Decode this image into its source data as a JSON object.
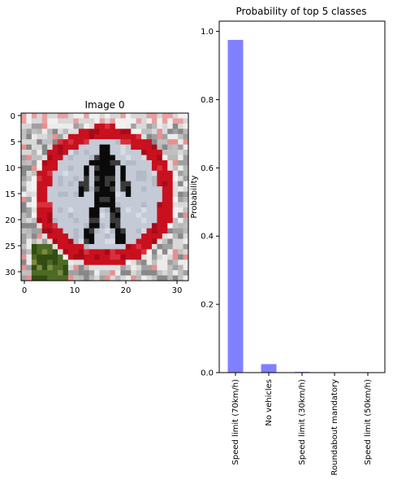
{
  "left_panel": {
    "title": "Image 0",
    "xticks": [
      "0",
      "10",
      "20",
      "30"
    ],
    "yticks": [
      "0",
      "5",
      "10",
      "15",
      "20",
      "25",
      "30"
    ],
    "image_size": 32,
    "image_description_colors": {
      "ring": "#c8101e",
      "inner": "#c4cad6",
      "figure": "#0a0a0a",
      "background_gray": "#a8a8a8",
      "foliage": "#4d6a24"
    }
  },
  "chart_data": {
    "type": "bar",
    "title": "Probability of top 5 classes",
    "xlabel": "",
    "ylabel": "Probability",
    "categories": [
      "Speed limit (70km/h)",
      "No vehicles",
      "Speed limit (30km/h)",
      "Roundabout mandatory",
      "Speed limit (50km/h)"
    ],
    "values": [
      0.975,
      0.025,
      0.002,
      0.0005,
      0.0003
    ],
    "yticks": [
      "0.0",
      "0.2",
      "0.4",
      "0.6",
      "0.8",
      "1.0"
    ],
    "ylim": [
      0,
      1.03
    ],
    "bar_color": "#8080ff",
    "grid": false
  }
}
